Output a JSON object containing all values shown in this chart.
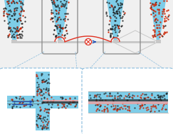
{
  "bg_color": "#f0f0f0",
  "light_blue": "#7ecde8",
  "dot_black": "#1a1a1a",
  "dot_red": "#cc2200",
  "arrow_blue": "#2255bb",
  "arrow_red": "#e03020",
  "box_border": "#888888",
  "dashed_border": "#88bbdd",
  "nanochannel_gray": "#c8c8c8",
  "white": "#ffffff",
  "black_band": "#222222",
  "pink_band": "#f0a0a0"
}
